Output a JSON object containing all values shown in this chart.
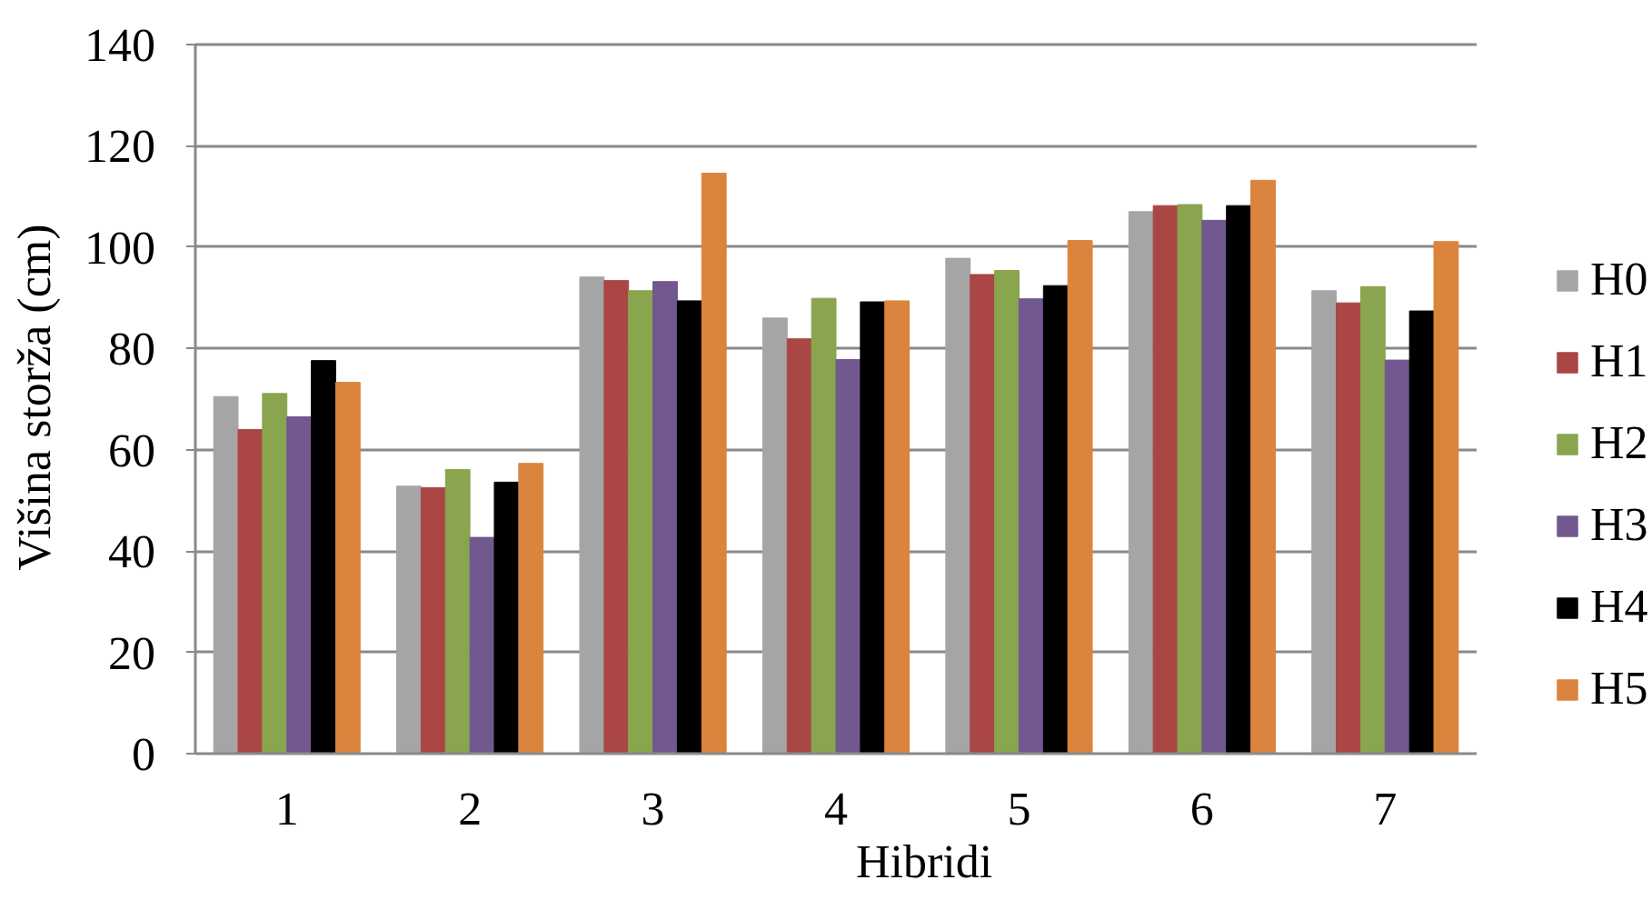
{
  "chart_data": {
    "type": "bar",
    "xlabel": "Hibridi",
    "ylabel": "Višina storža (cm)",
    "categories": [
      "1",
      "2",
      "3",
      "4",
      "5",
      "6",
      "7"
    ],
    "series": [
      {
        "name": "H0",
        "color": "#a5a5a5",
        "values": [
          70.5,
          52.8,
          94.1,
          86.0,
          97.8,
          107.0,
          91.4
        ]
      },
      {
        "name": "H1",
        "color": "#aa4643",
        "values": [
          64.0,
          52.5,
          93.4,
          81.9,
          94.6,
          108.2,
          89.0
        ]
      },
      {
        "name": "H2",
        "color": "#89a54e",
        "values": [
          71.1,
          56.1,
          91.4,
          89.9,
          95.4,
          108.4,
          92.2
        ]
      },
      {
        "name": "H3",
        "color": "#71588f",
        "values": [
          66.5,
          42.7,
          93.2,
          77.8,
          89.8,
          105.3,
          77.7
        ]
      },
      {
        "name": "H4",
        "color": "#000000",
        "values": [
          77.6,
          53.6,
          89.4,
          89.2,
          92.4,
          108.2,
          87.4
        ]
      },
      {
        "name": "H5",
        "color": "#db843d",
        "values": [
          73.3,
          57.3,
          114.6,
          89.4,
          101.3,
          113.2,
          101.1
        ]
      }
    ],
    "ylim": [
      0,
      140
    ],
    "yticks": [
      0,
      20,
      40,
      60,
      80,
      100,
      120,
      140
    ],
    "grid": "y",
    "legend": "right"
  }
}
